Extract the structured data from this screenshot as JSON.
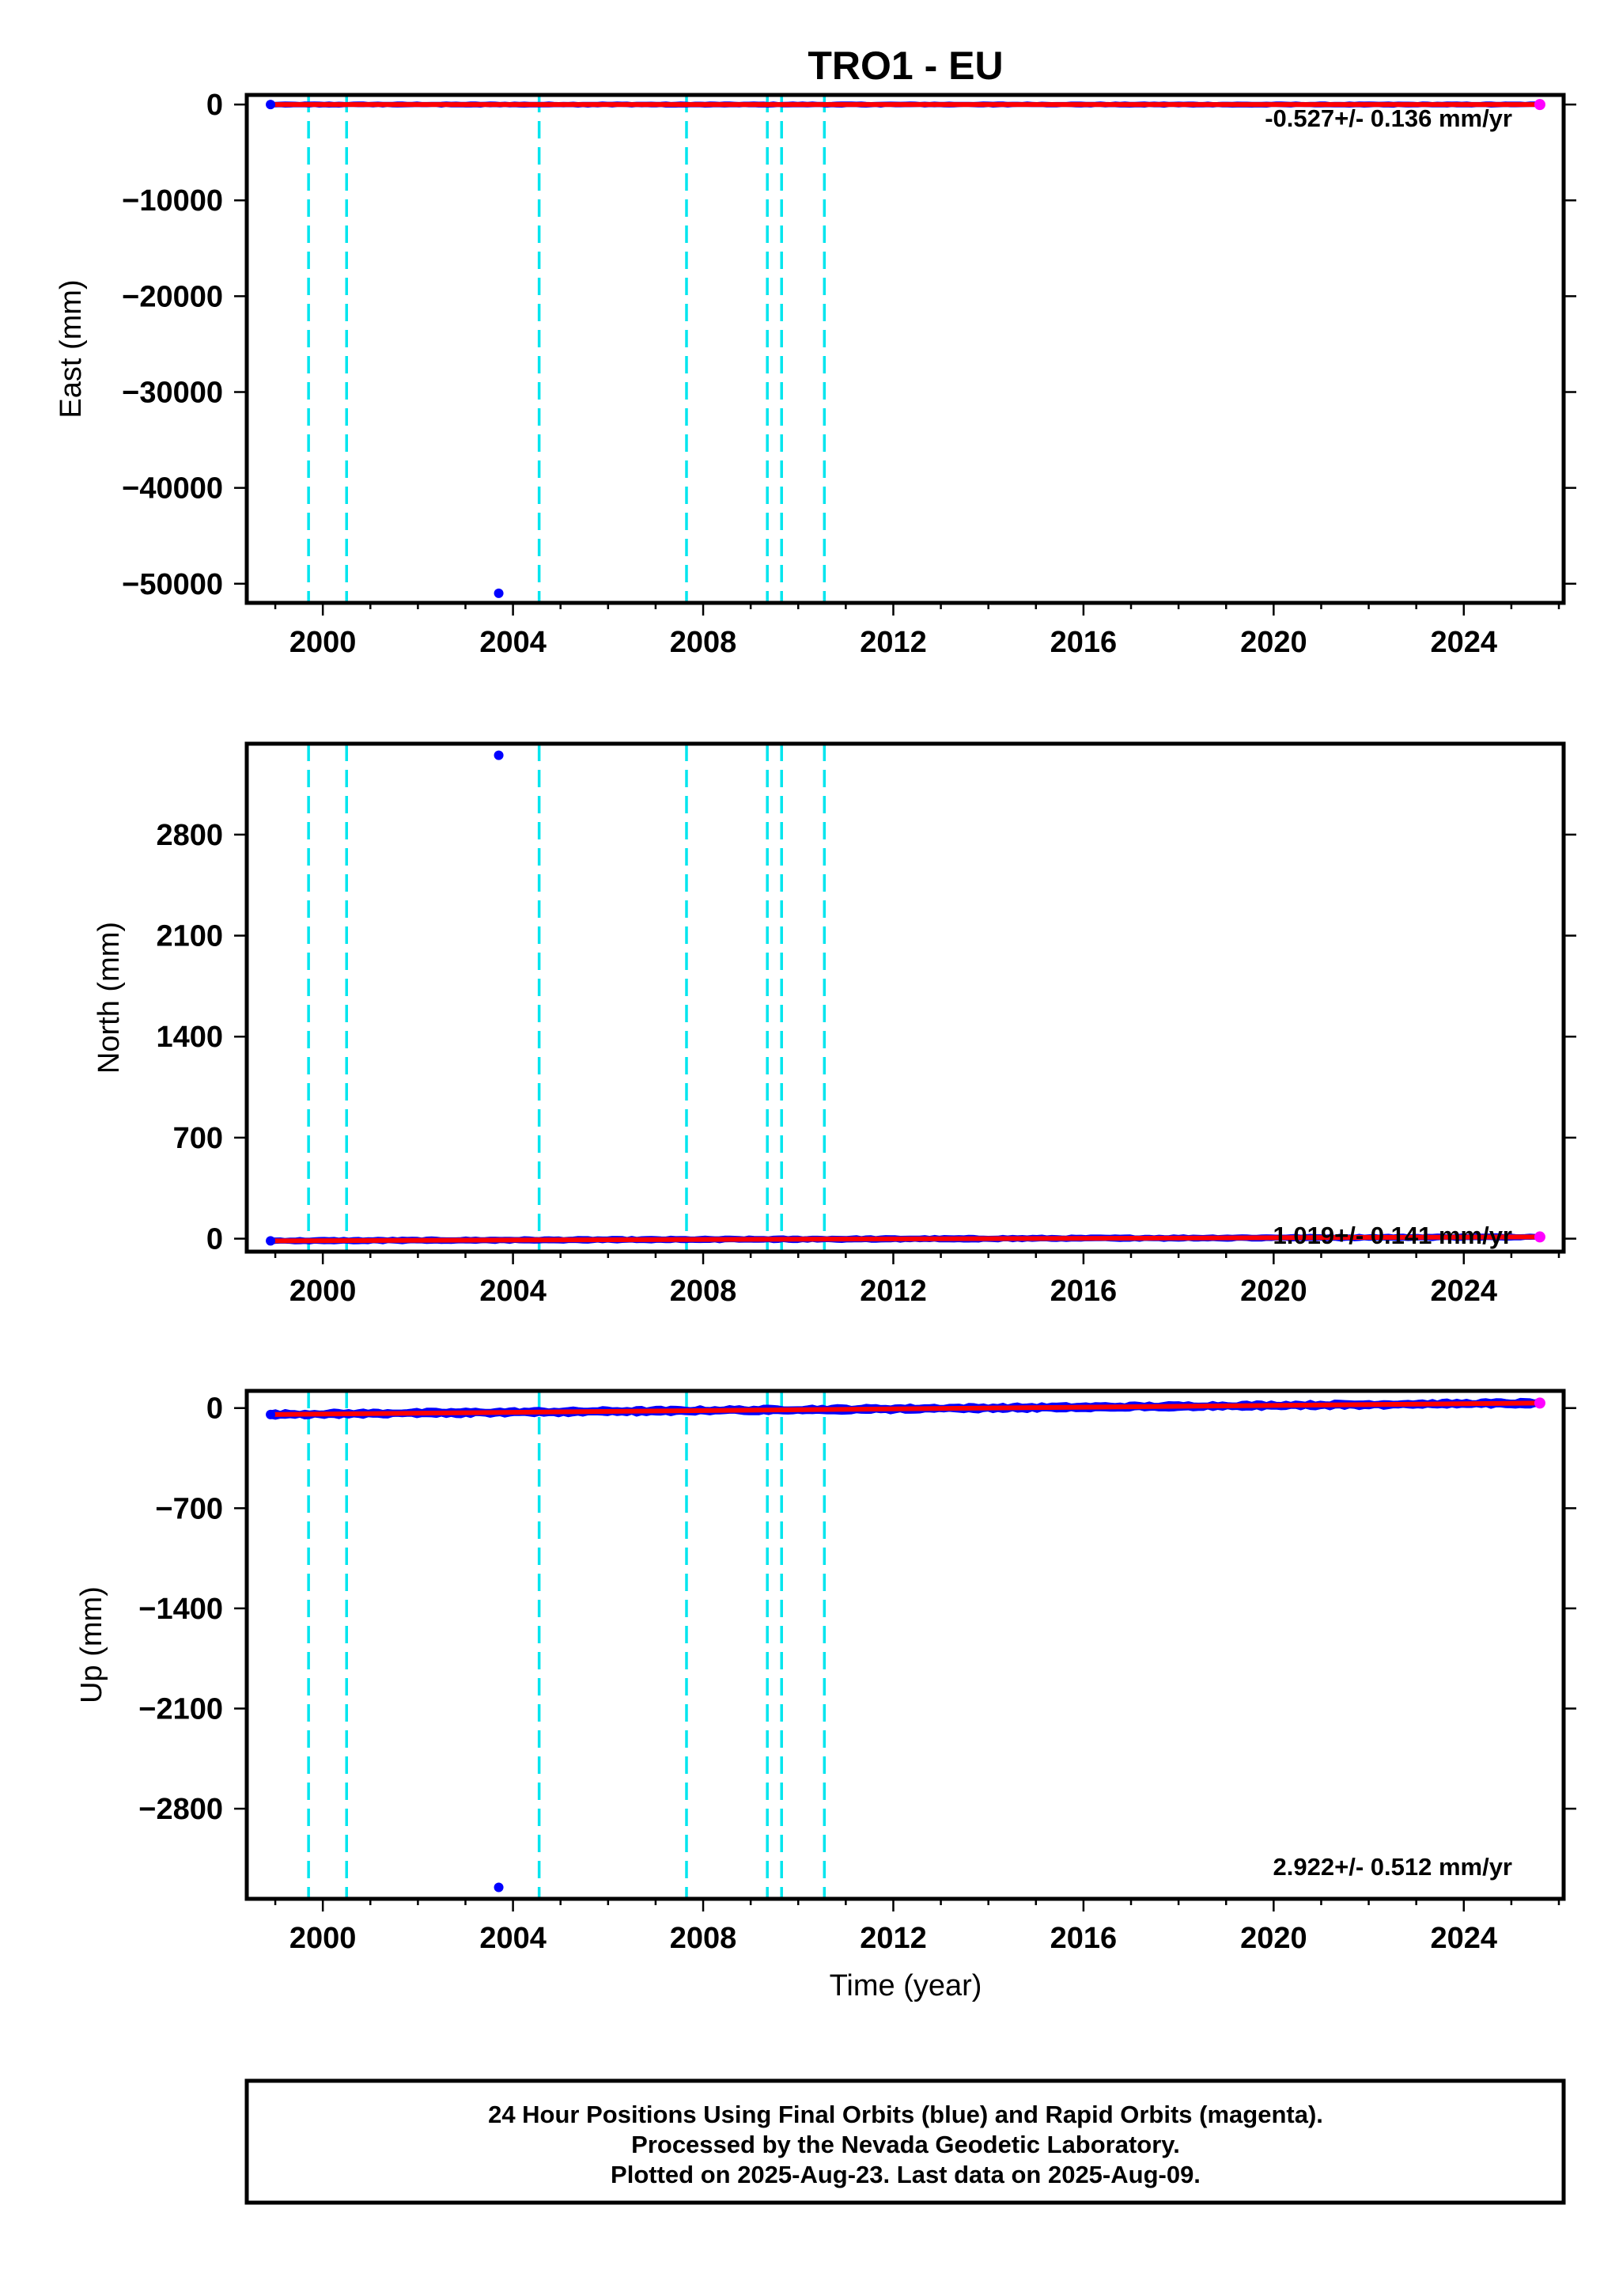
{
  "chart_data": [
    {
      "type": "scatter",
      "title": "TRO1 - EU",
      "ylabel": "East (mm)",
      "xlabel": "",
      "xlim": [
        1998.4,
        2026.1
      ],
      "ylim": [
        -52000,
        1000
      ],
      "xticks": [
        2000,
        2004,
        2008,
        2012,
        2016,
        2020,
        2024
      ],
      "yticks": [
        0,
        -10000,
        -20000,
        -30000,
        -40000,
        -50000
      ],
      "ytick_labels": [
        "0",
        "−10000",
        "−20000",
        "−30000",
        "−40000",
        "−50000"
      ],
      "rate_label": "-0.527+/- 0.136 mm/yr",
      "data_start": 1998.9,
      "data_end": 2025.6,
      "trend": [
        0,
        0
      ],
      "outliers": [
        {
          "x": 2003.7,
          "y": -51000
        }
      ],
      "offset_lines": [
        1999.7,
        2000.5,
        2004.55,
        2007.65,
        2009.35,
        2009.65,
        2010.55
      ],
      "series": [
        {
          "name": "Final Orbits",
          "color": "#0000ff"
        },
        {
          "name": "Rapid Orbits",
          "color": "#ff00ff"
        }
      ],
      "grid": false
    },
    {
      "type": "scatter",
      "title": "",
      "ylabel": "North (mm)",
      "xlabel": "",
      "xlim": [
        1998.4,
        2026.1
      ],
      "ylim": [
        -90,
        3430
      ],
      "xticks": [
        2000,
        2004,
        2008,
        2012,
        2016,
        2020,
        2024
      ],
      "yticks": [
        0,
        700,
        1400,
        2100,
        2800
      ],
      "ytick_labels": [
        "0",
        "700",
        "1400",
        "2100",
        "2800"
      ],
      "rate_label": "1.019+/- 0.141 mm/yr",
      "data_start": 1998.9,
      "data_end": 2025.6,
      "trend": [
        -15,
        12
      ],
      "outliers": [
        {
          "x": 2003.7,
          "y": 3350
        }
      ],
      "offset_lines": [
        1999.7,
        2000.5,
        2004.55,
        2007.65,
        2009.35,
        2009.65,
        2010.55
      ],
      "series": [
        {
          "name": "Final Orbits",
          "color": "#0000ff"
        },
        {
          "name": "Rapid Orbits",
          "color": "#ff00ff"
        }
      ],
      "grid": false
    },
    {
      "type": "scatter",
      "title": "",
      "ylabel": "Up (mm)",
      "xlabel": "Time (year)",
      "xlim": [
        1998.4,
        2026.1
      ],
      "ylim": [
        -3430,
        120
      ],
      "xticks": [
        2000,
        2004,
        2008,
        2012,
        2016,
        2020,
        2024
      ],
      "yticks": [
        0,
        -700,
        -1400,
        -2100,
        -2800
      ],
      "ytick_labels": [
        "0",
        "−700",
        "−1400",
        "−2100",
        "−2800"
      ],
      "rate_label": "2.922+/- 0.512 mm/yr",
      "data_start": 1998.9,
      "data_end": 2025.6,
      "trend": [
        -45,
        35
      ],
      "outliers": [
        {
          "x": 2003.7,
          "y": -3350
        }
      ],
      "offset_lines": [
        1999.7,
        2000.5,
        2004.55,
        2007.65,
        2009.35,
        2009.65,
        2010.55
      ],
      "series": [
        {
          "name": "Final Orbits",
          "color": "#0000ff"
        },
        {
          "name": "Rapid Orbits",
          "color": "#ff00ff"
        }
      ],
      "grid": false
    }
  ],
  "footer": {
    "line1": "24 Hour Positions Using Final Orbits (blue) and Rapid Orbits (magenta).",
    "line2": "Processed by the Nevada Geodetic Laboratory.",
    "line3": "Plotted on 2025-Aug-23. Last data on 2025-Aug-09."
  },
  "colors": {
    "final_orbits": "#0000ff",
    "rapid_orbits": "#ff00ff",
    "trend_line": "#ff0000",
    "offset_lines": "#00e5ee",
    "frame": "#000000"
  }
}
